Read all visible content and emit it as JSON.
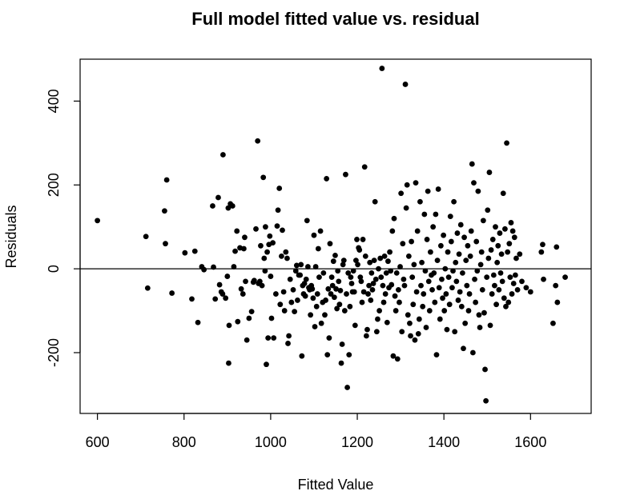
{
  "chart_data": {
    "type": "scatter",
    "title": "Full model fitted value vs. residual",
    "xlabel": "Fitted Value",
    "ylabel": "Residuals",
    "xlim": [
      560,
      1740
    ],
    "ylim": [
      -345,
      500
    ],
    "x_ticks": [
      600,
      800,
      1000,
      1200,
      1400,
      1600
    ],
    "y_ticks": [
      -200,
      0,
      200,
      400
    ],
    "reference_line_y": 0,
    "grid": false,
    "point_color": "#000000",
    "points": [
      [
        600,
        115
      ],
      [
        712,
        77
      ],
      [
        716,
        -46
      ],
      [
        755,
        138
      ],
      [
        757,
        60
      ],
      [
        760,
        212
      ],
      [
        772,
        -58
      ],
      [
        802,
        38
      ],
      [
        818,
        -72
      ],
      [
        825,
        42
      ],
      [
        832,
        -128
      ],
      [
        841,
        5
      ],
      [
        846,
        -2
      ],
      [
        866,
        150
      ],
      [
        868,
        4
      ],
      [
        872,
        -72
      ],
      [
        879,
        170
      ],
      [
        882,
        -38
      ],
      [
        886,
        -55
      ],
      [
        889,
        -60
      ],
      [
        890,
        272
      ],
      [
        896,
        -70
      ],
      [
        900,
        -18
      ],
      [
        902,
        145
      ],
      [
        903,
        -225
      ],
      [
        904,
        -135
      ],
      [
        907,
        155
      ],
      [
        912,
        150
      ],
      [
        915,
        5
      ],
      [
        918,
        42
      ],
      [
        922,
        90
      ],
      [
        924,
        -126
      ],
      [
        929,
        50
      ],
      [
        932,
        -48
      ],
      [
        936,
        -60
      ],
      [
        938,
        48
      ],
      [
        940,
        75
      ],
      [
        942,
        -30
      ],
      [
        945,
        -170
      ],
      [
        950,
        -118
      ],
      [
        956,
        -102
      ],
      [
        960,
        -32
      ],
      [
        962,
        -28
      ],
      [
        966,
        95
      ],
      [
        970,
        305
      ],
      [
        972,
        -35
      ],
      [
        975,
        -30
      ],
      [
        977,
        55
      ],
      [
        980,
        -40
      ],
      [
        983,
        218
      ],
      [
        985,
        25
      ],
      [
        987,
        -5
      ],
      [
        988,
        100
      ],
      [
        990,
        -228
      ],
      [
        992,
        40
      ],
      [
        994,
        -165
      ],
      [
        996,
        58
      ],
      [
        998,
        78
      ],
      [
        1000,
        -18
      ],
      [
        1002,
        -118
      ],
      [
        1005,
        62
      ],
      [
        1007,
        -165
      ],
      [
        1012,
        -60
      ],
      [
        1015,
        102
      ],
      [
        1017,
        140
      ],
      [
        1020,
        192
      ],
      [
        1022,
        -85
      ],
      [
        1025,
        30
      ],
      [
        1027,
        92
      ],
      [
        1030,
        -55
      ],
      [
        1032,
        -100
      ],
      [
        1035,
        40
      ],
      [
        1038,
        25
      ],
      [
        1040,
        -178
      ],
      [
        1042,
        -160
      ],
      [
        1045,
        -25
      ],
      [
        1048,
        -80
      ],
      [
        1052,
        -50
      ],
      [
        1055,
        -102
      ],
      [
        1058,
        -5
      ],
      [
        1060,
        8
      ],
      [
        1062,
        -75
      ],
      [
        1065,
        -15
      ],
      [
        1068,
        -15
      ],
      [
        1070,
        10
      ],
      [
        1072,
        -208
      ],
      [
        1074,
        -40
      ],
      [
        1076,
        -60
      ],
      [
        1078,
        -35
      ],
      [
        1080,
        -65
      ],
      [
        1082,
        -25
      ],
      [
        1084,
        115
      ],
      [
        1086,
        5
      ],
      [
        1088,
        -45
      ],
      [
        1090,
        -50
      ],
      [
        1092,
        -110
      ],
      [
        1094,
        -40
      ],
      [
        1096,
        -48
      ],
      [
        1098,
        -70
      ],
      [
        1100,
        80
      ],
      [
        1102,
        -138
      ],
      [
        1104,
        5
      ],
      [
        1106,
        -90
      ],
      [
        1108,
        -60
      ],
      [
        1110,
        48
      ],
      [
        1112,
        -20
      ],
      [
        1115,
        90
      ],
      [
        1117,
        -130
      ],
      [
        1120,
        -80
      ],
      [
        1122,
        -10
      ],
      [
        1125,
        -110
      ],
      [
        1127,
        -75
      ],
      [
        1129,
        215
      ],
      [
        1131,
        -205
      ],
      [
        1133,
        -48
      ],
      [
        1135,
        -165
      ],
      [
        1137,
        60
      ],
      [
        1139,
        -60
      ],
      [
        1141,
        -20
      ],
      [
        1143,
        -40
      ],
      [
        1145,
        18
      ],
      [
        1147,
        -68
      ],
      [
        1149,
        32
      ],
      [
        1151,
        -48
      ],
      [
        1153,
        -95
      ],
      [
        1155,
        -5
      ],
      [
        1157,
        -30
      ],
      [
        1159,
        -85
      ],
      [
        1161,
        -52
      ],
      [
        1163,
        -225
      ],
      [
        1165,
        -180
      ],
      [
        1167,
        10
      ],
      [
        1169,
        20
      ],
      [
        1171,
        -100
      ],
      [
        1173,
        225
      ],
      [
        1175,
        -60
      ],
      [
        1177,
        -283
      ],
      [
        1179,
        -10
      ],
      [
        1181,
        -205
      ],
      [
        1183,
        -90
      ],
      [
        1185,
        -20
      ],
      [
        1187,
        -35
      ],
      [
        1189,
        -55
      ],
      [
        1191,
        -5
      ],
      [
        1193,
        -55
      ],
      [
        1195,
        -135
      ],
      [
        1197,
        20
      ],
      [
        1199,
        70
      ],
      [
        1201,
        10
      ],
      [
        1203,
        50
      ],
      [
        1205,
        45
      ],
      [
        1207,
        -20
      ],
      [
        1209,
        -30
      ],
      [
        1211,
        -80
      ],
      [
        1213,
        70
      ],
      [
        1215,
        -55
      ],
      [
        1217,
        243
      ],
      [
        1219,
        30
      ],
      [
        1221,
        -160
      ],
      [
        1223,
        -145
      ],
      [
        1225,
        -60
      ],
      [
        1227,
        -40
      ],
      [
        1229,
        15
      ],
      [
        1231,
        -75
      ],
      [
        1233,
        -10
      ],
      [
        1235,
        -50
      ],
      [
        1237,
        -35
      ],
      [
        1239,
        20
      ],
      [
        1241,
        160
      ],
      [
        1243,
        -25
      ],
      [
        1245,
        -150
      ],
      [
        1247,
        -120
      ],
      [
        1249,
        0
      ],
      [
        1251,
        -100
      ],
      [
        1253,
        25
      ],
      [
        1255,
        -20
      ],
      [
        1257,
        478
      ],
      [
        1259,
        -40
      ],
      [
        1261,
        -80
      ],
      [
        1263,
        30
      ],
      [
        1265,
        -60
      ],
      [
        1267,
        -10
      ],
      [
        1269,
        -128
      ],
      [
        1271,
        18
      ],
      [
        1273,
        -45
      ],
      [
        1275,
        40
      ],
      [
        1277,
        -5
      ],
      [
        1279,
        -38
      ],
      [
        1281,
        90
      ],
      [
        1283,
        -208
      ],
      [
        1285,
        120
      ],
      [
        1287,
        -65
      ],
      [
        1289,
        -100
      ],
      [
        1291,
        -10
      ],
      [
        1293,
        -215
      ],
      [
        1295,
        -50
      ],
      [
        1297,
        -80
      ],
      [
        1299,
        5
      ],
      [
        1301,
        180
      ],
      [
        1303,
        -150
      ],
      [
        1305,
        60
      ],
      [
        1307,
        -25
      ],
      [
        1309,
        -40
      ],
      [
        1311,
        440
      ],
      [
        1313,
        145
      ],
      [
        1315,
        200
      ],
      [
        1317,
        -110
      ],
      [
        1319,
        30
      ],
      [
        1321,
        -130
      ],
      [
        1323,
        -160
      ],
      [
        1325,
        65
      ],
      [
        1327,
        -20
      ],
      [
        1329,
        -85
      ],
      [
        1331,
        10
      ],
      [
        1333,
        -170
      ],
      [
        1335,
        205
      ],
      [
        1337,
        -55
      ],
      [
        1339,
        90
      ],
      [
        1341,
        -155
      ],
      [
        1343,
        -120
      ],
      [
        1345,
        160
      ],
      [
        1347,
        -40
      ],
      [
        1349,
        15
      ],
      [
        1351,
        -90
      ],
      [
        1353,
        -60
      ],
      [
        1355,
        130
      ],
      [
        1357,
        -5
      ],
      [
        1359,
        -140
      ],
      [
        1361,
        70
      ],
      [
        1363,
        185
      ],
      [
        1365,
        -30
      ],
      [
        1367,
        -100
      ],
      [
        1369,
        40
      ],
      [
        1371,
        -15
      ],
      [
        1373,
        -50
      ],
      [
        1375,
        100
      ],
      [
        1377,
        -10
      ],
      [
        1379,
        -80
      ],
      [
        1381,
        130
      ],
      [
        1383,
        -205
      ],
      [
        1385,
        20
      ],
      [
        1387,
        190
      ],
      [
        1389,
        -45
      ],
      [
        1391,
        -120
      ],
      [
        1393,
        55
      ],
      [
        1395,
        -25
      ],
      [
        1397,
        -70
      ],
      [
        1399,
        80
      ],
      [
        1401,
        -100
      ],
      [
        1403,
        0
      ],
      [
        1405,
        -60
      ],
      [
        1407,
        -145
      ],
      [
        1409,
        40
      ],
      [
        1411,
        -20
      ],
      [
        1413,
        -85
      ],
      [
        1415,
        125
      ],
      [
        1417,
        65
      ],
      [
        1419,
        -45
      ],
      [
        1421,
        -5
      ],
      [
        1423,
        160
      ],
      [
        1425,
        -150
      ],
      [
        1427,
        15
      ],
      [
        1429,
        -30
      ],
      [
        1431,
        85
      ],
      [
        1433,
        -75
      ],
      [
        1435,
        35
      ],
      [
        1437,
        -55
      ],
      [
        1439,
        105
      ],
      [
        1441,
        -90
      ],
      [
        1443,
        -10
      ],
      [
        1445,
        -190
      ],
      [
        1447,
        75
      ],
      [
        1449,
        -130
      ],
      [
        1451,
        20
      ],
      [
        1453,
        -40
      ],
      [
        1455,
        55
      ],
      [
        1457,
        -100
      ],
      [
        1459,
        -60
      ],
      [
        1461,
        30
      ],
      [
        1463,
        90
      ],
      [
        1465,
        250
      ],
      [
        1467,
        -200
      ],
      [
        1469,
        205
      ],
      [
        1471,
        -25
      ],
      [
        1473,
        -80
      ],
      [
        1475,
        65
      ],
      [
        1477,
        -5
      ],
      [
        1479,
        185
      ],
      [
        1481,
        -110
      ],
      [
        1483,
        -140
      ],
      [
        1485,
        10
      ],
      [
        1487,
        40
      ],
      [
        1489,
        -50
      ],
      [
        1491,
        115
      ],
      [
        1493,
        -105
      ],
      [
        1495,
        -240
      ],
      [
        1497,
        -315
      ],
      [
        1499,
        -20
      ],
      [
        1501,
        140
      ],
      [
        1503,
        25
      ],
      [
        1505,
        230
      ],
      [
        1507,
        -135
      ],
      [
        1509,
        45
      ],
      [
        1511,
        -60
      ],
      [
        1513,
        70
      ],
      [
        1515,
        -15
      ],
      [
        1517,
        -40
      ],
      [
        1519,
        100
      ],
      [
        1521,
        -85
      ],
      [
        1523,
        15
      ],
      [
        1525,
        55
      ],
      [
        1527,
        -50
      ],
      [
        1529,
        85
      ],
      [
        1531,
        -10
      ],
      [
        1533,
        35
      ],
      [
        1535,
        -30
      ],
      [
        1537,
        180
      ],
      [
        1539,
        -70
      ],
      [
        1541,
        95
      ],
      [
        1543,
        -90
      ],
      [
        1545,
        300
      ],
      [
        1547,
        40
      ],
      [
        1549,
        -80
      ],
      [
        1551,
        60
      ],
      [
        1553,
        -20
      ],
      [
        1555,
        110
      ],
      [
        1557,
        -60
      ],
      [
        1559,
        90
      ],
      [
        1561,
        -35
      ],
      [
        1563,
        75
      ],
      [
        1565,
        -15
      ],
      [
        1567,
        25
      ],
      [
        1570,
        -50
      ],
      [
        1575,
        35
      ],
      [
        1580,
        -30
      ],
      [
        1590,
        -45
      ],
      [
        1600,
        -55
      ],
      [
        1625,
        40
      ],
      [
        1628,
        58
      ],
      [
        1630,
        -25
      ],
      [
        1652,
        -130
      ],
      [
        1658,
        -40
      ],
      [
        1660,
        52
      ],
      [
        1662,
        -80
      ],
      [
        1680,
        -20
      ]
    ]
  }
}
